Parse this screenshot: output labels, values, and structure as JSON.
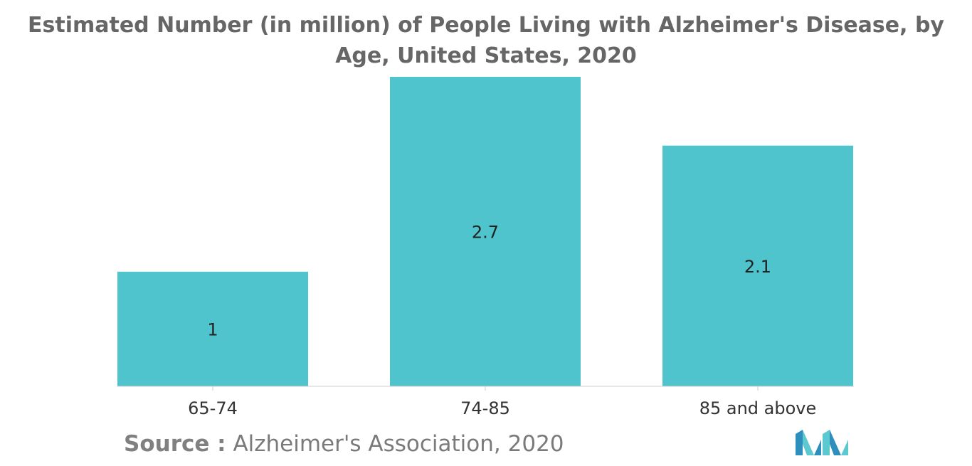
{
  "colors": {
    "bar": "#50c4cc",
    "title": "#666666",
    "text": "#333333",
    "logo_dark": "#2f8fbc",
    "logo_light": "#5cc8cf"
  },
  "chart_data": {
    "type": "bar",
    "title": "Estimated Number (in million) of People Living with Alzheimer's Disease, by Age, United States, 2020",
    "xlabel": "",
    "ylabel": "",
    "categories": [
      "65-74",
      "74-85",
      "85 and above"
    ],
    "values": [
      1,
      2.7,
      2.1
    ],
    "data_labels": [
      "1",
      "2.7",
      "2.1"
    ],
    "ylim": [
      0,
      2.7
    ],
    "grid": false,
    "legend": "none"
  },
  "source": {
    "label": "Source :",
    "text": "Alzheimer's Association, 2020"
  },
  "logo": {
    "icon": "mordor-intelligence-logo-icon"
  }
}
